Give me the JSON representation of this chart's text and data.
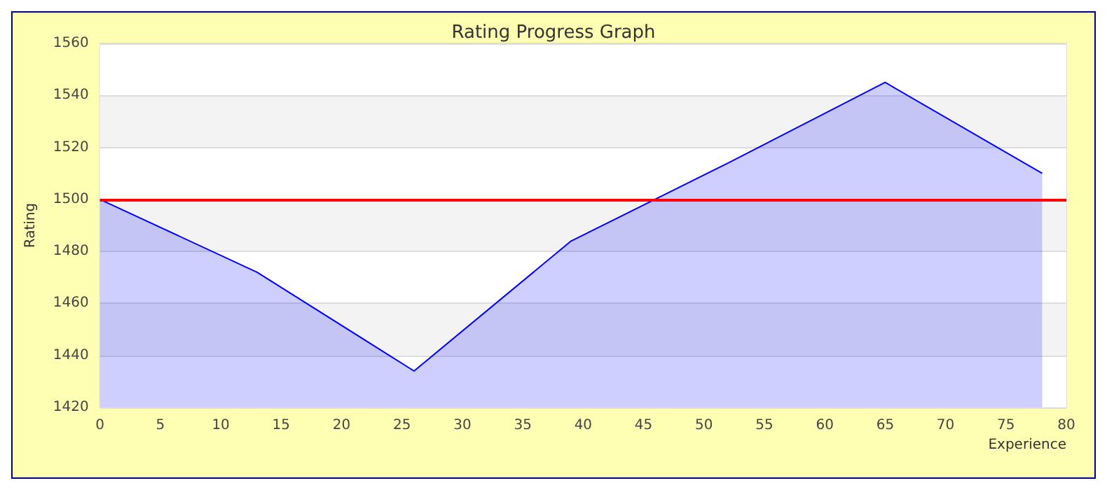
{
  "chart_data": {
    "type": "area",
    "title": "Rating Progress Graph",
    "xlabel": "Experience",
    "ylabel": "Rating",
    "x": [
      0,
      13,
      26,
      39,
      52,
      65,
      78
    ],
    "series": [
      {
        "color": "#0000ff",
        "values": [
          1500,
          1472,
          1434,
          1484,
          1514,
          1545,
          1510
        ]
      }
    ],
    "xlim": [
      0,
      80
    ],
    "xticks": [
      0,
      5,
      10,
      15,
      20,
      25,
      30,
      35,
      40,
      45,
      50,
      55,
      60,
      65,
      70,
      75,
      80
    ],
    "ylim": [
      1420,
      1560
    ],
    "yticks": [
      1420,
      1440,
      1460,
      1480,
      1500,
      1520,
      1540,
      1560
    ],
    "ref_lines": [
      {
        "axis": "y",
        "value": 1500,
        "color": "#ff0000"
      }
    ],
    "grid": "y",
    "marker": "none"
  }
}
